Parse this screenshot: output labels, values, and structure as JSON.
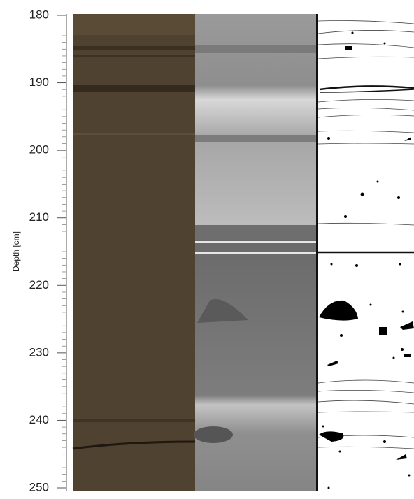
{
  "chart_data": {
    "type": "core-log",
    "ylabel": "Depth [cm]",
    "ylim": [
      180,
      250
    ],
    "yticks": [
      180,
      190,
      200,
      210,
      220,
      230,
      240,
      250
    ],
    "yminorticks": [
      181,
      182,
      183,
      184,
      185,
      186,
      187,
      188,
      189,
      191,
      192,
      193,
      194,
      195,
      196,
      197,
      198,
      199,
      201,
      202,
      203,
      204,
      205,
      206,
      207,
      208,
      209,
      211,
      212,
      213,
      214,
      215,
      216,
      217,
      218,
      219,
      221,
      222,
      223,
      224,
      225,
      226,
      227,
      228,
      229,
      231,
      232,
      233,
      234,
      235,
      236,
      237,
      238,
      239,
      241,
      242,
      243,
      244,
      245,
      246,
      247,
      248,
      249
    ]
  }
}
